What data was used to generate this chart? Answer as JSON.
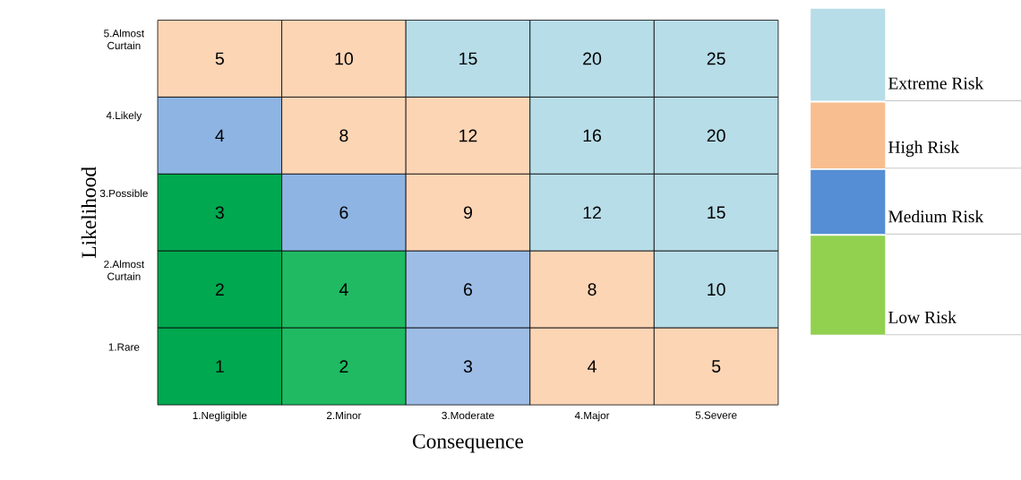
{
  "chart_data": {
    "type": "heatmap",
    "xlabel": "Consequence",
    "ylabel": "Likelihood",
    "categories": [
      "1.Negligible",
      "2.Minor",
      "3.Moderate",
      "4.Major",
      "5.Severe"
    ],
    "y_categories": [
      "5.Almost Curtain",
      "4.Likely",
      "3.Possible",
      "2.Almost Curtain",
      "1.Rare"
    ],
    "cells": [
      [
        5,
        10,
        15,
        20,
        25
      ],
      [
        4,
        8,
        12,
        16,
        20
      ],
      [
        3,
        6,
        9,
        12,
        15
      ],
      [
        2,
        4,
        6,
        8,
        10
      ],
      [
        1,
        2,
        3,
        4,
        5
      ]
    ],
    "colors": [
      [
        "#fcd5b5",
        "#fcd5b5",
        "#b7dde8",
        "#b7dde8",
        "#b7dde8"
      ],
      [
        "#8eb4e3",
        "#fcd5b5",
        "#fcd5b5",
        "#b7dde8",
        "#b7dde8"
      ],
      [
        "#00a84f",
        "#8eb4e3",
        "#fcd5b5",
        "#b7dde8",
        "#b7dde8"
      ],
      [
        "#00a84f",
        "#1fba62",
        "#9dbde6",
        "#fcd5b5",
        "#b7dde8"
      ],
      [
        "#00a84f",
        "#1fba62",
        "#9dbde6",
        "#fcd5b5",
        "#fcd5b5"
      ]
    ],
    "data_labels": true,
    "annotations": [
      "Extreme Risk",
      "High Risk",
      "Medium Risk",
      "Low Risk"
    ]
  }
}
